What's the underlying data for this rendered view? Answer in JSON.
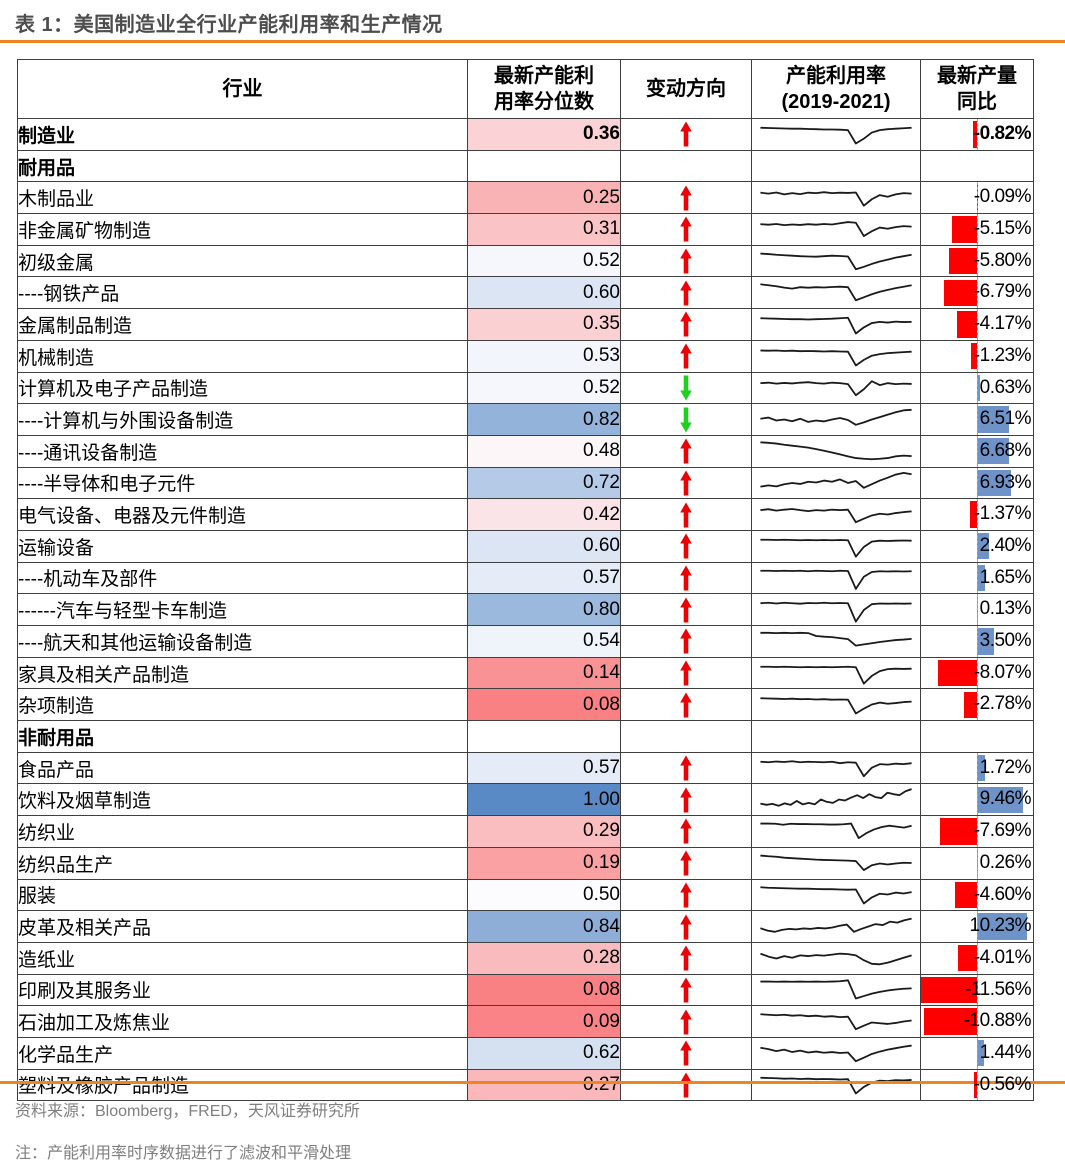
{
  "title": "表 1：美国制造业全行业产能利用率和生产情况",
  "footer": {
    "source": "资料来源：Bloomberg，FRED，天风证券研究所",
    "note": "注：产能利用率时序数据进行了滤波和平滑处理"
  },
  "colors": {
    "accent_orange": "#F08322",
    "title_gray": "#4d4d4d",
    "footer_gray": "#7f7f7f",
    "grid": "#3f3f3f",
    "scale_low": "#F8696B",
    "scale_mid": "#FCFCFF",
    "scale_high": "#5A8AC6",
    "bar_negative": "#FE0000",
    "bar_positive": "#6E93C8",
    "bar_axis": "#90A8C6",
    "arrow_up": "#EE0000",
    "arrow_down": "#1FD11F",
    "spark_line": "#1a1a1a"
  },
  "chart_data": {
    "type": "table",
    "title": "表 1：美国制造业全行业产能利用率和生产情况",
    "columns": [
      "行业",
      "最新产能利\n用率分位数",
      "变动方向",
      "产能利用率\n(2019-2021)",
      "最新产量\n同比"
    ],
    "visual_encoding": {
      "percentile_color_scale": {
        "min": {
          "value": 0.0,
          "color": "#F8696B"
        },
        "mid": {
          "value": 0.5,
          "color": "#FCFCFF"
        },
        "max": {
          "value": 1.0,
          "color": "#5A8AC6"
        }
      },
      "bar_axis_max": 11.56,
      "sparkline_period": "2019-2021"
    },
    "rows": [
      {
        "name": "制造业",
        "section": false,
        "bold": true,
        "percentile": "0.36",
        "direction": "up",
        "yoy": "-0.82%",
        "spark": [
          0.8,
          0.79,
          0.78,
          0.77,
          0.76,
          0.76,
          0.75,
          0.74,
          0.73,
          0.73,
          0.72,
          0.7,
          0.15,
          0.35,
          0.6,
          0.7,
          0.74,
          0.76,
          0.78,
          0.8
        ]
      },
      {
        "name": "耐用品",
        "section": true,
        "bold": true,
        "percentile": null,
        "direction": null,
        "yoy": null,
        "spark": null
      },
      {
        "name": "木制品业",
        "section": false,
        "bold": false,
        "percentile": "0.25",
        "direction": "up",
        "yoy": "-0.09%",
        "spark": [
          0.72,
          0.68,
          0.73,
          0.65,
          0.7,
          0.66,
          0.72,
          0.7,
          0.74,
          0.7,
          0.72,
          0.71,
          0.73,
          0.18,
          0.45,
          0.62,
          0.55,
          0.65,
          0.7,
          0.68
        ]
      },
      {
        "name": "非金属矿物制造",
        "section": false,
        "bold": false,
        "percentile": "0.31",
        "direction": "up",
        "yoy": "-5.15%",
        "spark": [
          0.74,
          0.72,
          0.75,
          0.7,
          0.73,
          0.71,
          0.74,
          0.72,
          0.75,
          0.73,
          0.78,
          0.83,
          0.8,
          0.25,
          0.45,
          0.6,
          0.55,
          0.62,
          0.66,
          0.64
        ]
      },
      {
        "name": "初级金属",
        "section": false,
        "bold": false,
        "percentile": "0.52",
        "direction": "up",
        "yoy": "-5.80%",
        "spark": [
          0.85,
          0.83,
          0.8,
          0.78,
          0.76,
          0.74,
          0.73,
          0.72,
          0.74,
          0.76,
          0.75,
          0.73,
          0.2,
          0.3,
          0.42,
          0.52,
          0.6,
          0.68,
          0.74,
          0.8
        ]
      },
      {
        "name": "----钢铁产品",
        "section": false,
        "bold": false,
        "percentile": "0.60",
        "direction": "up",
        "yoy": "-6.79%",
        "spark": [
          0.86,
          0.82,
          0.78,
          0.72,
          0.68,
          0.74,
          0.72,
          0.74,
          0.73,
          0.75,
          0.76,
          0.74,
          0.2,
          0.32,
          0.45,
          0.55,
          0.63,
          0.7,
          0.76,
          0.82
        ]
      },
      {
        "name": "金属制品制造",
        "section": false,
        "bold": false,
        "percentile": "0.35",
        "direction": "up",
        "yoy": "-4.17%",
        "spark": [
          0.78,
          0.77,
          0.76,
          0.75,
          0.74,
          0.74,
          0.73,
          0.74,
          0.75,
          0.76,
          0.78,
          0.8,
          0.15,
          0.4,
          0.58,
          0.63,
          0.6,
          0.64,
          0.62,
          0.63
        ]
      },
      {
        "name": "机械制造",
        "section": false,
        "bold": false,
        "percentile": "0.53",
        "direction": "up",
        "yoy": "-1.23%",
        "spark": [
          0.77,
          0.76,
          0.77,
          0.75,
          0.76,
          0.74,
          0.75,
          0.74,
          0.73,
          0.74,
          0.73,
          0.72,
          0.15,
          0.38,
          0.55,
          0.62,
          0.66,
          0.68,
          0.7,
          0.72
        ]
      },
      {
        "name": "计算机及电子产品制造",
        "section": false,
        "bold": false,
        "percentile": "0.52",
        "direction": "down",
        "yoy": "0.63%",
        "spark": [
          0.7,
          0.72,
          0.68,
          0.71,
          0.69,
          0.72,
          0.74,
          0.7,
          0.68,
          0.72,
          0.7,
          0.66,
          0.2,
          0.45,
          0.78,
          0.62,
          0.7,
          0.66,
          0.68,
          0.67
        ]
      },
      {
        "name": "----计算机与外围设备制造",
        "section": false,
        "bold": false,
        "percentile": "0.82",
        "direction": "down",
        "yoy": "6.51%",
        "spark": [
          0.55,
          0.6,
          0.48,
          0.52,
          0.45,
          0.55,
          0.42,
          0.48,
          0.44,
          0.52,
          0.58,
          0.5,
          0.3,
          0.4,
          0.52,
          0.62,
          0.72,
          0.82,
          0.9,
          0.92
        ]
      },
      {
        "name": "----通讯设备制造",
        "section": false,
        "bold": false,
        "percentile": "0.48",
        "direction": "up",
        "yoy": "6.68%",
        "spark": [
          0.9,
          0.88,
          0.85,
          0.8,
          0.76,
          0.72,
          0.68,
          0.62,
          0.55,
          0.48,
          0.4,
          0.32,
          0.25,
          0.22,
          0.2,
          0.22,
          0.25,
          0.32,
          0.35,
          0.33
        ]
      },
      {
        "name": "----半导体和电子元件",
        "section": false,
        "bold": false,
        "percentile": "0.72",
        "direction": "up",
        "yoy": "6.93%",
        "spark": [
          0.35,
          0.4,
          0.36,
          0.45,
          0.5,
          0.46,
          0.55,
          0.52,
          0.6,
          0.55,
          0.65,
          0.5,
          0.58,
          0.3,
          0.45,
          0.6,
          0.72,
          0.85,
          0.92,
          0.86
        ]
      },
      {
        "name": "电气设备、电器及元件制造",
        "section": false,
        "bold": false,
        "percentile": "0.42",
        "direction": "up",
        "yoy": "-1.37%",
        "spark": [
          0.7,
          0.74,
          0.68,
          0.72,
          0.75,
          0.7,
          0.66,
          0.7,
          0.68,
          0.72,
          0.7,
          0.72,
          0.2,
          0.35,
          0.48,
          0.55,
          0.52,
          0.58,
          0.62,
          0.65
        ]
      },
      {
        "name": "运输设备",
        "section": false,
        "bold": false,
        "percentile": "0.60",
        "direction": "up",
        "yoy": "2.40%",
        "spark": [
          0.8,
          0.8,
          0.79,
          0.8,
          0.79,
          0.78,
          0.79,
          0.78,
          0.79,
          0.78,
          0.79,
          0.78,
          0.1,
          0.5,
          0.72,
          0.76,
          0.75,
          0.76,
          0.77,
          0.76
        ]
      },
      {
        "name": "----机动车及部件",
        "section": false,
        "bold": false,
        "percentile": "0.57",
        "direction": "up",
        "yoy": "1.65%",
        "spark": [
          0.8,
          0.8,
          0.79,
          0.8,
          0.79,
          0.8,
          0.78,
          0.8,
          0.79,
          0.78,
          0.8,
          0.79,
          0.05,
          0.55,
          0.75,
          0.78,
          0.77,
          0.78,
          0.77,
          0.78
        ]
      },
      {
        "name": "------汽车与轻型卡车制造",
        "section": false,
        "bold": false,
        "percentile": "0.80",
        "direction": "up",
        "yoy": "0.13%",
        "spark": [
          0.78,
          0.8,
          0.77,
          0.8,
          0.78,
          0.76,
          0.79,
          0.78,
          0.8,
          0.78,
          0.79,
          0.78,
          0.02,
          0.5,
          0.74,
          0.77,
          0.76,
          0.77,
          0.76,
          0.77
        ]
      },
      {
        "name": "----航天和其他运输设备制造",
        "section": false,
        "bold": false,
        "percentile": "0.54",
        "direction": "up",
        "yoy": "3.50%",
        "spark": [
          0.88,
          0.88,
          0.87,
          0.88,
          0.87,
          0.88,
          0.87,
          0.75,
          0.72,
          0.7,
          0.66,
          0.62,
          0.35,
          0.4,
          0.45,
          0.5,
          0.54,
          0.58,
          0.6,
          0.63
        ]
      },
      {
        "name": "家具及相关产品制造",
        "section": false,
        "bold": false,
        "percentile": "0.14",
        "direction": "up",
        "yoy": "-8.07%",
        "spark": [
          0.8,
          0.8,
          0.79,
          0.8,
          0.79,
          0.78,
          0.79,
          0.78,
          0.79,
          0.78,
          0.79,
          0.8,
          0.78,
          0.1,
          0.42,
          0.62,
          0.7,
          0.72,
          0.71,
          0.72
        ]
      },
      {
        "name": "杂项制造",
        "section": false,
        "bold": false,
        "percentile": "0.08",
        "direction": "up",
        "yoy": "-2.78%",
        "spark": [
          0.78,
          0.77,
          0.76,
          0.75,
          0.76,
          0.74,
          0.75,
          0.73,
          0.74,
          0.72,
          0.73,
          0.72,
          0.15,
          0.35,
          0.52,
          0.6,
          0.55,
          0.58,
          0.62,
          0.64
        ]
      },
      {
        "name": "非耐用品",
        "section": true,
        "bold": true,
        "percentile": null,
        "direction": null,
        "yoy": null,
        "spark": null
      },
      {
        "name": "食品产品",
        "section": false,
        "bold": false,
        "percentile": "0.57",
        "direction": "up",
        "yoy": "1.72%",
        "spark": [
          0.8,
          0.78,
          0.81,
          0.79,
          0.82,
          0.78,
          0.8,
          0.79,
          0.78,
          0.8,
          0.74,
          0.78,
          0.76,
          0.2,
          0.55,
          0.7,
          0.68,
          0.72,
          0.7,
          0.74
        ]
      },
      {
        "name": "饮料及烟草制造",
        "section": false,
        "bold": false,
        "percentile": "1.00",
        "direction": "up",
        "yoy": "9.46%",
        "spark": [
          0.35,
          0.3,
          0.34,
          0.26,
          0.36,
          0.3,
          0.46,
          0.32,
          0.38,
          0.32,
          0.52,
          0.42,
          0.38,
          0.52,
          0.48,
          0.6,
          0.7,
          0.58,
          0.74,
          0.62,
          0.58,
          0.8,
          0.74,
          0.7,
          0.86,
          0.95
        ]
      },
      {
        "name": "纺织业",
        "section": false,
        "bold": false,
        "percentile": "0.29",
        "direction": "up",
        "yoy": "-7.69%",
        "spark": [
          0.85,
          0.85,
          0.84,
          0.8,
          0.84,
          0.83,
          0.83,
          0.82,
          0.82,
          0.81,
          0.81,
          0.82,
          0.85,
          0.25,
          0.45,
          0.6,
          0.7,
          0.76,
          0.72,
          0.68,
          0.76
        ]
      },
      {
        "name": "纺织品生产",
        "section": false,
        "bold": false,
        "percentile": "0.19",
        "direction": "up",
        "yoy": "0.26%",
        "spark": [
          0.85,
          0.82,
          0.8,
          0.76,
          0.74,
          0.72,
          0.7,
          0.68,
          0.67,
          0.66,
          0.65,
          0.64,
          0.62,
          0.25,
          0.45,
          0.52,
          0.48,
          0.52,
          0.55,
          0.54
        ]
      },
      {
        "name": "服装",
        "section": false,
        "bold": false,
        "percentile": "0.50",
        "direction": "up",
        "yoy": "-4.60%",
        "spark": [
          0.82,
          0.8,
          0.79,
          0.78,
          0.77,
          0.76,
          0.76,
          0.75,
          0.74,
          0.74,
          0.73,
          0.72,
          0.73,
          0.15,
          0.4,
          0.55,
          0.52,
          0.6,
          0.56,
          0.62
        ]
      },
      {
        "name": "皮革及相关产品",
        "section": false,
        "bold": false,
        "percentile": "0.84",
        "direction": "up",
        "yoy": "10.23%",
        "spark": [
          0.45,
          0.35,
          0.3,
          0.38,
          0.42,
          0.4,
          0.44,
          0.42,
          0.46,
          0.44,
          0.48,
          0.55,
          0.6,
          0.3,
          0.42,
          0.52,
          0.62,
          0.58,
          0.72,
          0.68,
          0.78,
          0.85
        ]
      },
      {
        "name": "造纸业",
        "section": false,
        "bold": false,
        "percentile": "0.28",
        "direction": "up",
        "yoy": "-4.01%",
        "spark": [
          0.72,
          0.6,
          0.52,
          0.62,
          0.55,
          0.65,
          0.62,
          0.66,
          0.64,
          0.68,
          0.72,
          0.7,
          0.65,
          0.45,
          0.3,
          0.28,
          0.35,
          0.45,
          0.55,
          0.65
        ]
      },
      {
        "name": "印刷及其服务业",
        "section": false,
        "bold": false,
        "percentile": "0.08",
        "direction": "up",
        "yoy": "-11.56%",
        "spark": [
          0.85,
          0.85,
          0.84,
          0.85,
          0.84,
          0.85,
          0.84,
          0.85,
          0.84,
          0.85,
          0.86,
          0.9,
          0.15,
          0.25,
          0.35,
          0.42,
          0.48,
          0.52,
          0.55,
          0.57
        ]
      },
      {
        "name": "石油加工及炼焦业",
        "section": false,
        "bold": false,
        "percentile": "0.09",
        "direction": "up",
        "yoy": "-10.88%",
        "spark": [
          0.82,
          0.8,
          0.78,
          0.8,
          0.76,
          0.78,
          0.74,
          0.76,
          0.72,
          0.74,
          0.7,
          0.72,
          0.2,
          0.35,
          0.48,
          0.45,
          0.42,
          0.46,
          0.52,
          0.56
        ]
      },
      {
        "name": "化学品生产",
        "section": false,
        "bold": false,
        "percentile": "0.62",
        "direction": "up",
        "yoy": "1.44%",
        "spark": [
          0.76,
          0.7,
          0.62,
          0.68,
          0.58,
          0.64,
          0.56,
          0.6,
          0.55,
          0.58,
          0.54,
          0.56,
          0.2,
          0.35,
          0.5,
          0.6,
          0.68,
          0.74,
          0.8,
          0.85
        ]
      },
      {
        "name": "塑料及橡胶产品制造",
        "section": false,
        "bold": false,
        "percentile": "0.27",
        "direction": "up",
        "yoy": "-0.56%",
        "spark": [
          0.8,
          0.79,
          0.78,
          0.76,
          0.77,
          0.75,
          0.76,
          0.74,
          0.75,
          0.74,
          0.73,
          0.74,
          0.15,
          0.42,
          0.6,
          0.68,
          0.66,
          0.7,
          0.69,
          0.71
        ]
      }
    ]
  }
}
